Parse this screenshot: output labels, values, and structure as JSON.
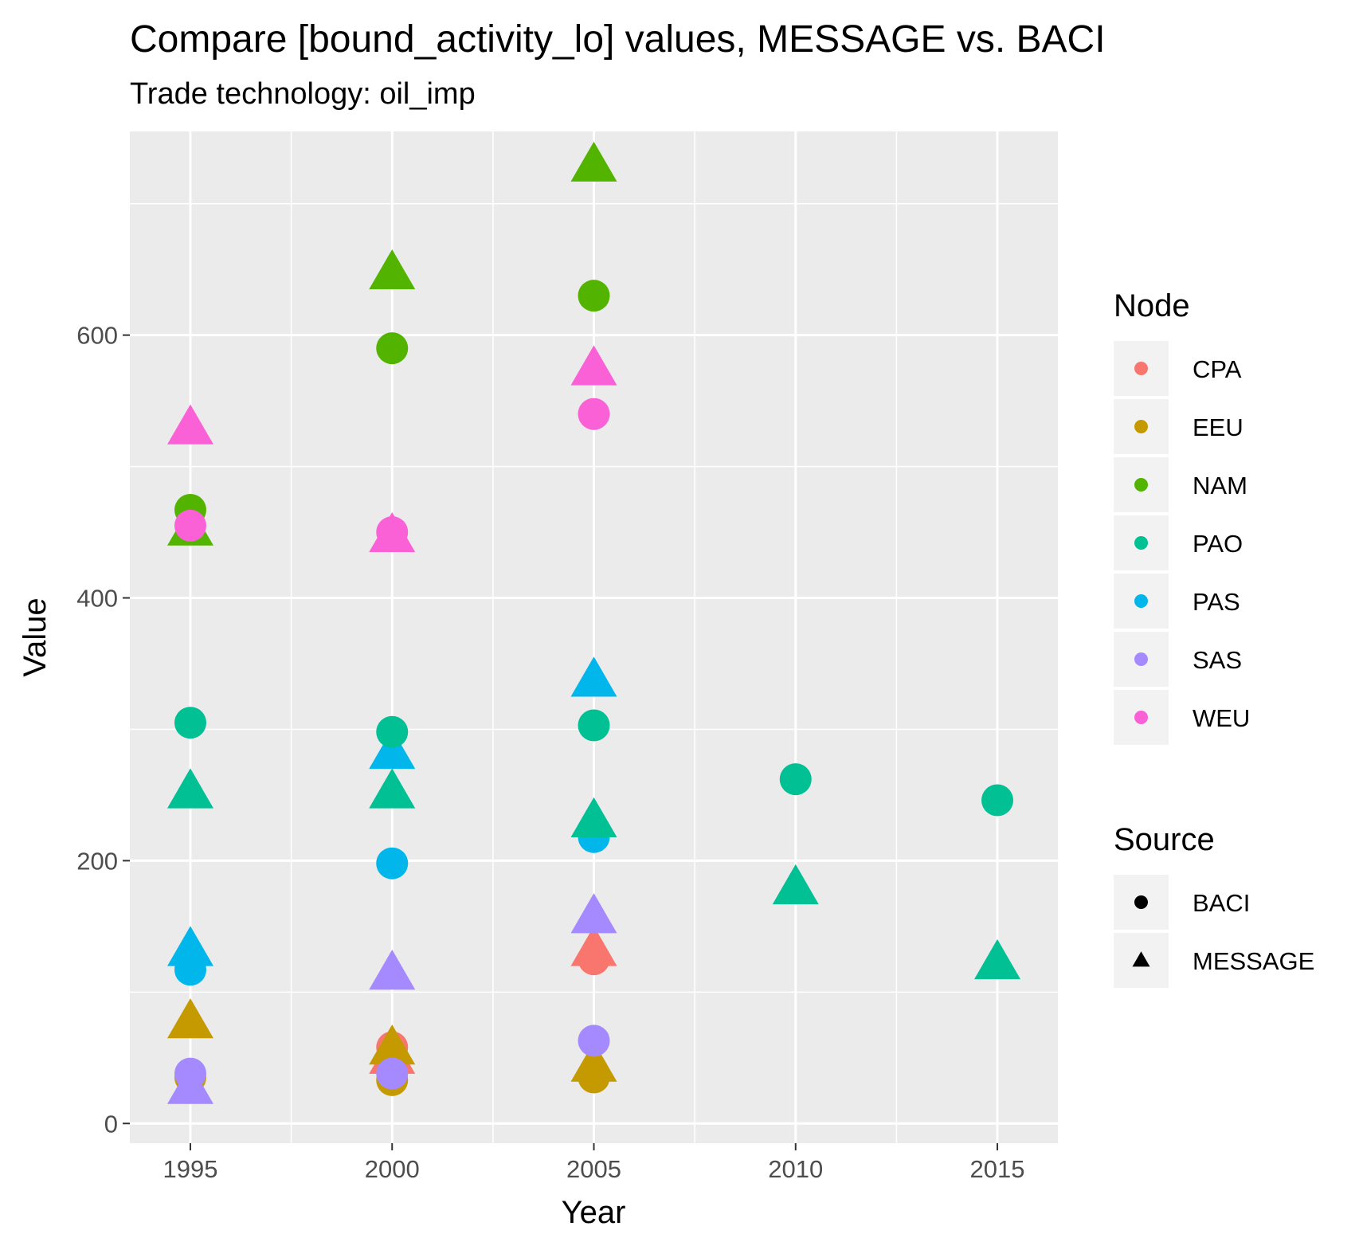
{
  "chart_data": {
    "type": "scatter",
    "title": "Compare [bound_activity_lo] values, MESSAGE vs. BACI",
    "subtitle": "Trade technology: oil_imp",
    "xlabel": "Year",
    "ylabel": "Value",
    "xlim": [
      1993.5,
      2016.5
    ],
    "ylim": [
      -15,
      755
    ],
    "x_ticks": [
      1995,
      2000,
      2005,
      2010,
      2015
    ],
    "y_ticks": [
      0,
      200,
      400,
      600
    ],
    "x_tick_labels": [
      "1995",
      "2000",
      "2005",
      "2010",
      "2015"
    ],
    "y_tick_labels": [
      "0",
      "200",
      "400",
      "600"
    ],
    "grid": true,
    "legend_placement": "right",
    "legend": {
      "node_title": "Node",
      "source_title": "Source",
      "nodes": [
        {
          "name": "CPA",
          "color": "#F8766D"
        },
        {
          "name": "EEU",
          "color": "#C49A00"
        },
        {
          "name": "NAM",
          "color": "#53B400"
        },
        {
          "name": "PAO",
          "color": "#00C094"
        },
        {
          "name": "PAS",
          "color": "#00B6EB"
        },
        {
          "name": "SAS",
          "color": "#A58AFF"
        },
        {
          "name": "WEU",
          "color": "#FB61D7"
        }
      ],
      "sources": [
        {
          "name": "BACI",
          "shape": "circle"
        },
        {
          "name": "MESSAGE",
          "shape": "triangle"
        }
      ]
    },
    "points": [
      {
        "node": "EEU",
        "source": "MESSAGE",
        "x": 1995,
        "y": 75
      },
      {
        "node": "EEU",
        "source": "BACI",
        "x": 1995,
        "y": 35
      },
      {
        "node": "SAS",
        "source": "MESSAGE",
        "x": 1995,
        "y": 25
      },
      {
        "node": "SAS",
        "source": "BACI",
        "x": 1995,
        "y": 38
      },
      {
        "node": "PAS",
        "source": "MESSAGE",
        "x": 1995,
        "y": 130
      },
      {
        "node": "PAS",
        "source": "BACI",
        "x": 1995,
        "y": 117
      },
      {
        "node": "PAO",
        "source": "MESSAGE",
        "x": 1995,
        "y": 250
      },
      {
        "node": "PAO",
        "source": "BACI",
        "x": 1995,
        "y": 305
      },
      {
        "node": "NAM",
        "source": "MESSAGE",
        "x": 1995,
        "y": 450
      },
      {
        "node": "NAM",
        "source": "BACI",
        "x": 1995,
        "y": 467
      },
      {
        "node": "WEU",
        "source": "MESSAGE",
        "x": 1995,
        "y": 527
      },
      {
        "node": "WEU",
        "source": "BACI",
        "x": 1995,
        "y": 455
      },
      {
        "node": "CPA",
        "source": "MESSAGE",
        "x": 2000,
        "y": 48
      },
      {
        "node": "CPA",
        "source": "BACI",
        "x": 2000,
        "y": 58
      },
      {
        "node": "EEU",
        "source": "MESSAGE",
        "x": 2000,
        "y": 55
      },
      {
        "node": "EEU",
        "source": "BACI",
        "x": 2000,
        "y": 33
      },
      {
        "node": "SAS",
        "source": "MESSAGE",
        "x": 2000,
        "y": 112
      },
      {
        "node": "SAS",
        "source": "BACI",
        "x": 2000,
        "y": 38
      },
      {
        "node": "PAS",
        "source": "MESSAGE",
        "x": 2000,
        "y": 280
      },
      {
        "node": "PAS",
        "source": "BACI",
        "x": 2000,
        "y": 198
      },
      {
        "node": "PAO",
        "source": "MESSAGE",
        "x": 2000,
        "y": 250
      },
      {
        "node": "PAO",
        "source": "BACI",
        "x": 2000,
        "y": 298
      },
      {
        "node": "NAM",
        "source": "MESSAGE",
        "x": 2000,
        "y": 645
      },
      {
        "node": "NAM",
        "source": "BACI",
        "x": 2000,
        "y": 590
      },
      {
        "node": "WEU",
        "source": "MESSAGE",
        "x": 2000,
        "y": 445
      },
      {
        "node": "WEU",
        "source": "BACI",
        "x": 2000,
        "y": 450
      },
      {
        "node": "CPA",
        "source": "MESSAGE",
        "x": 2005,
        "y": 130
      },
      {
        "node": "CPA",
        "source": "BACI",
        "x": 2005,
        "y": 125
      },
      {
        "node": "EEU",
        "source": "MESSAGE",
        "x": 2005,
        "y": 42
      },
      {
        "node": "EEU",
        "source": "BACI",
        "x": 2005,
        "y": 35
      },
      {
        "node": "SAS",
        "source": "MESSAGE",
        "x": 2005,
        "y": 155
      },
      {
        "node": "SAS",
        "source": "BACI",
        "x": 2005,
        "y": 63
      },
      {
        "node": "PAS",
        "source": "MESSAGE",
        "x": 2005,
        "y": 335
      },
      {
        "node": "PAS",
        "source": "BACI",
        "x": 2005,
        "y": 218
      },
      {
        "node": "PAO",
        "source": "MESSAGE",
        "x": 2005,
        "y": 228
      },
      {
        "node": "PAO",
        "source": "BACI",
        "x": 2005,
        "y": 303
      },
      {
        "node": "NAM",
        "source": "MESSAGE",
        "x": 2005,
        "y": 727
      },
      {
        "node": "NAM",
        "source": "BACI",
        "x": 2005,
        "y": 630
      },
      {
        "node": "WEU",
        "source": "MESSAGE",
        "x": 2005,
        "y": 572
      },
      {
        "node": "WEU",
        "source": "BACI",
        "x": 2005,
        "y": 540
      },
      {
        "node": "PAO",
        "source": "MESSAGE",
        "x": 2010,
        "y": 177
      },
      {
        "node": "PAO",
        "source": "BACI",
        "x": 2010,
        "y": 262
      },
      {
        "node": "PAO",
        "source": "MESSAGE",
        "x": 2015,
        "y": 120
      },
      {
        "node": "PAO",
        "source": "BACI",
        "x": 2015,
        "y": 246
      }
    ]
  }
}
